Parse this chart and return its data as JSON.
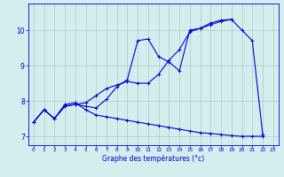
{
  "xlabel": "Graphe des températures (°c)",
  "background_color": "#d4eeee",
  "grid_color": "#aacccc",
  "line_color": "#0000cc",
  "xlim": [
    -0.5,
    23.5
  ],
  "ylim": [
    6.75,
    10.75
  ],
  "xticks": [
    0,
    1,
    2,
    3,
    4,
    5,
    6,
    7,
    8,
    9,
    10,
    11,
    12,
    13,
    14,
    15,
    16,
    17,
    18,
    19,
    20,
    21,
    22,
    23
  ],
  "yticks": [
    7,
    8,
    9,
    10
  ],
  "line1_x": [
    0,
    1,
    2,
    3,
    4,
    5,
    6,
    7,
    8,
    9,
    10,
    11,
    12,
    13,
    14,
    15,
    16,
    17,
    18,
    19,
    20,
    21,
    22
  ],
  "line1_y": [
    7.4,
    7.75,
    7.5,
    7.85,
    7.9,
    7.85,
    7.8,
    8.05,
    8.4,
    8.6,
    9.7,
    9.75,
    9.25,
    9.1,
    8.85,
    10.0,
    10.05,
    10.15,
    10.25,
    10.3,
    10.0,
    9.7,
    7.05
  ],
  "line2_x": [
    0,
    1,
    2,
    3,
    4,
    5,
    6,
    7,
    8,
    9,
    10,
    11,
    12,
    13,
    14,
    15,
    16,
    17,
    18,
    19
  ],
  "line2_y": [
    7.4,
    7.75,
    7.5,
    7.85,
    7.9,
    7.95,
    8.15,
    8.35,
    8.45,
    8.55,
    8.5,
    8.5,
    8.75,
    9.15,
    9.45,
    9.95,
    10.05,
    10.2,
    10.28,
    10.3
  ],
  "line3_x": [
    0,
    1,
    2,
    3,
    4,
    5,
    6,
    7,
    8,
    9,
    10,
    11,
    12,
    13,
    14,
    15,
    16,
    17,
    18,
    19,
    20,
    21,
    22
  ],
  "line3_y": [
    7.4,
    7.75,
    7.5,
    7.9,
    7.95,
    7.75,
    7.6,
    7.55,
    7.5,
    7.45,
    7.4,
    7.35,
    7.3,
    7.25,
    7.2,
    7.15,
    7.1,
    7.08,
    7.05,
    7.02,
    7.0,
    7.0,
    7.0
  ]
}
